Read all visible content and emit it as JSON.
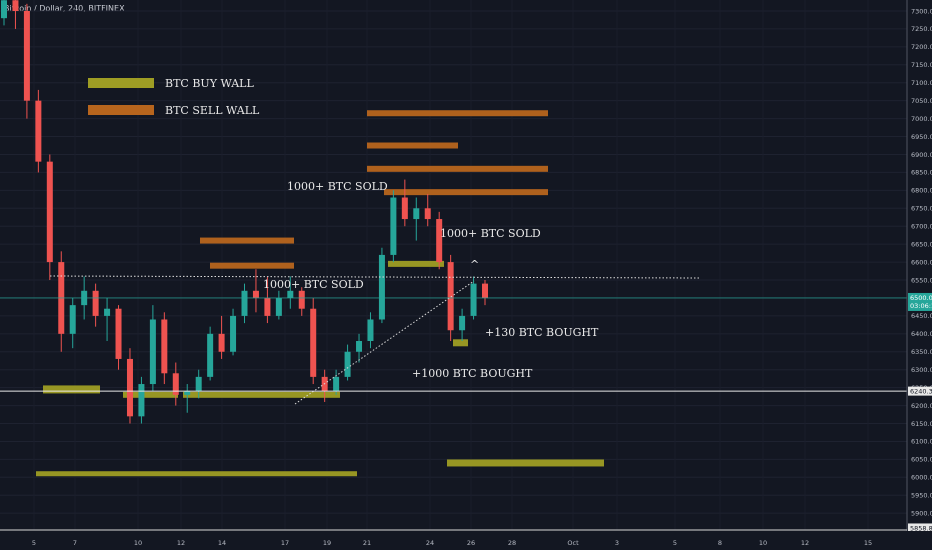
{
  "header": {
    "symbol": "Bitcoin / Dollar, 240, BITFINEX"
  },
  "chart_data": {
    "type": "candlestick",
    "y_range": [
      5850,
      7350
    ],
    "y_ticks": [
      7300,
      7250,
      7200,
      7150,
      7100,
      7050,
      7000,
      6950,
      6900,
      6850,
      6800,
      6750,
      6700,
      6650,
      6600,
      6550,
      6500,
      6450,
      6400,
      6350,
      6300,
      6250,
      6200,
      6150,
      6100,
      6050,
      6000,
      5950,
      5900
    ],
    "x_ticks": [
      "5",
      "7",
      "10",
      "12",
      "14",
      "17",
      "19",
      "21",
      "24",
      "26",
      "28",
      "Oct",
      "3",
      "5",
      "8",
      "10",
      "12",
      "15"
    ],
    "last_price": {
      "label": "6500.0",
      "countdown": "03:06:16",
      "value": 6500
    },
    "level_tag": {
      "label": "6240.3",
      "value": 6240.3
    },
    "bottom_tag": {
      "label": "5858.8",
      "value": 5858.8
    },
    "colors": {
      "up": "#26a69a",
      "down": "#ef5350",
      "buy_wall": "#9e9d24",
      "sell_wall": "#b7651d",
      "bg": "#131722"
    },
    "legend": [
      {
        "label": "BTC BUY WALL",
        "type": "buy"
      },
      {
        "label": "BTC SELL WALL",
        "type": "sell"
      }
    ],
    "annotations": [
      {
        "text": "1000+ BTC SOLD"
      },
      {
        "text": "1000+ BTC SOLD"
      },
      {
        "text": "1000+ BTC SOLD"
      },
      {
        "text": "+130 BTC BOUGHT"
      },
      {
        "text": "+1000 BTC BOUGHT"
      },
      {
        "text": "^"
      }
    ],
    "walls": [
      {
        "type": "sell",
        "price": 7015
      },
      {
        "type": "sell",
        "price": 6925
      },
      {
        "type": "sell",
        "price": 6860
      },
      {
        "type": "sell",
        "price": 6795
      },
      {
        "type": "sell",
        "price": 6660
      },
      {
        "type": "sell",
        "price": 6590
      },
      {
        "type": "buy",
        "price": 6595
      },
      {
        "type": "buy",
        "price": 6375
      },
      {
        "type": "buy",
        "price": 6245
      },
      {
        "type": "buy",
        "price": 6230
      },
      {
        "type": "buy",
        "price": 6230
      },
      {
        "type": "buy",
        "price": 6040
      },
      {
        "type": "buy",
        "price": 6010
      }
    ],
    "candles": [
      [
        7280,
        7350,
        7260,
        7330
      ],
      [
        7330,
        7350,
        7250,
        7300
      ],
      [
        7300,
        7320,
        7000,
        7050
      ],
      [
        7050,
        7080,
        6850,
        6880
      ],
      [
        6880,
        6900,
        6550,
        6600
      ],
      [
        6600,
        6630,
        6350,
        6400
      ],
      [
        6400,
        6500,
        6360,
        6480
      ],
      [
        6480,
        6560,
        6440,
        6520
      ],
      [
        6520,
        6540,
        6420,
        6450
      ],
      [
        6450,
        6500,
        6380,
        6470
      ],
      [
        6470,
        6480,
        6300,
        6330
      ],
      [
        6330,
        6360,
        6150,
        6170
      ],
      [
        6170,
        6280,
        6150,
        6260
      ],
      [
        6260,
        6480,
        6240,
        6440
      ],
      [
        6440,
        6460,
        6260,
        6290
      ],
      [
        6290,
        6320,
        6200,
        6230
      ],
      [
        6230,
        6260,
        6180,
        6240
      ],
      [
        6240,
        6300,
        6220,
        6280
      ],
      [
        6280,
        6420,
        6270,
        6400
      ],
      [
        6400,
        6450,
        6330,
        6350
      ],
      [
        6350,
        6470,
        6340,
        6450
      ],
      [
        6450,
        6540,
        6430,
        6520
      ],
      [
        6520,
        6580,
        6460,
        6500
      ],
      [
        6500,
        6560,
        6430,
        6450
      ],
      [
        6450,
        6520,
        6440,
        6500
      ],
      [
        6500,
        6560,
        6470,
        6520
      ],
      [
        6520,
        6530,
        6450,
        6470
      ],
      [
        6470,
        6500,
        6260,
        6280
      ],
      [
        6280,
        6300,
        6210,
        6240
      ],
      [
        6240,
        6300,
        6230,
        6280
      ],
      [
        6280,
        6370,
        6270,
        6350
      ],
      [
        6350,
        6400,
        6320,
        6380
      ],
      [
        6380,
        6460,
        6360,
        6440
      ],
      [
        6440,
        6640,
        6430,
        6620
      ],
      [
        6620,
        6800,
        6600,
        6780
      ],
      [
        6780,
        6830,
        6700,
        6720
      ],
      [
        6720,
        6780,
        6660,
        6750
      ],
      [
        6750,
        6790,
        6700,
        6720
      ],
      [
        6720,
        6740,
        6580,
        6600
      ],
      [
        6600,
        6620,
        6380,
        6410
      ],
      [
        6410,
        6470,
        6380,
        6450
      ],
      [
        6450,
        6560,
        6440,
        6540
      ],
      [
        6540,
        6550,
        6480,
        6500
      ]
    ]
  }
}
